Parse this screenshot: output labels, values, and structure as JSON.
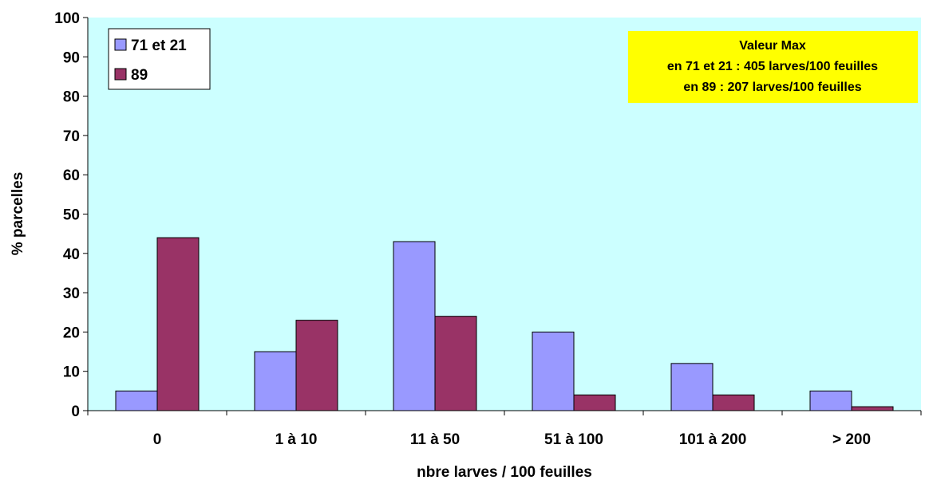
{
  "chart_data": {
    "type": "bar",
    "categories": [
      "0",
      "1 à 10",
      "11 à 50",
      "51 à 100",
      "101 à 200",
      "> 200"
    ],
    "series": [
      {
        "name": "71 et 21",
        "values": [
          5,
          15,
          43,
          20,
          12,
          5
        ],
        "color": "#9999ff"
      },
      {
        "name": "89",
        "values": [
          44,
          23,
          24,
          4,
          4,
          1
        ],
        "color": "#993366"
      }
    ],
    "xlabel": "nbre larves / 100 feuilles",
    "ylabel": "% parcelles",
    "ylim": [
      0,
      100
    ],
    "yticks": [
      "0",
      "10",
      "20",
      "30",
      "40",
      "50",
      "60",
      "70",
      "80",
      "90",
      "100"
    ],
    "plot_background": "#ccffff",
    "grid": false,
    "legend_position": "top-left",
    "annotation": {
      "lines": [
        "Valeur Max",
        "en 71 et 21 : 405 larves/100 feuilles",
        "en 89 : 207 larves/100 feuilles"
      ],
      "background": "#ffff00",
      "position": "top-right"
    }
  }
}
